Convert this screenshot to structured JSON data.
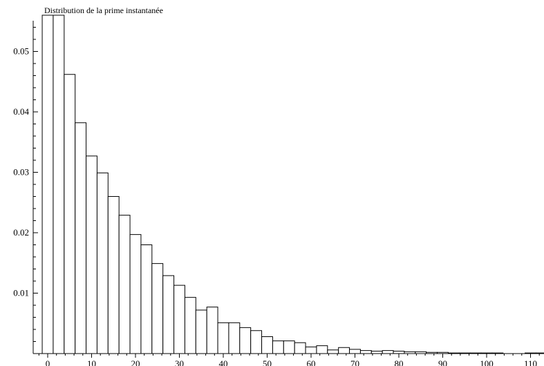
{
  "chart_data": {
    "type": "bar",
    "title": "Distribution de la prime instantanée",
    "xlabel": "",
    "ylabel": "",
    "bin_width": 2.5,
    "x_start": -1.25,
    "xlim": [
      -3,
      112
    ],
    "ylim": [
      0,
      0.056
    ],
    "x_ticks": [
      0,
      10,
      20,
      30,
      40,
      50,
      60,
      70,
      80,
      90,
      100,
      110
    ],
    "y_ticks": [
      0.01,
      0.02,
      0.03,
      0.04,
      0.05
    ],
    "x_tick_labels": [
      "0",
      "10",
      "20",
      "30",
      "40",
      "50",
      "60",
      "70",
      "80",
      "90",
      "100",
      "110"
    ],
    "y_tick_labels": [
      "0.01",
      "0.02",
      "0.03",
      "0.04",
      "0.05"
    ],
    "values": [
      0.056,
      0.056,
      0.0462,
      0.0382,
      0.0327,
      0.0299,
      0.026,
      0.0229,
      0.0197,
      0.018,
      0.0149,
      0.0129,
      0.0113,
      0.0093,
      0.0072,
      0.0077,
      0.0051,
      0.0051,
      0.0043,
      0.0038,
      0.0028,
      0.0021,
      0.0021,
      0.0018,
      0.0011,
      0.0013,
      0.0006,
      0.001,
      0.0007,
      0.0005,
      0.0004,
      0.0005,
      0.0004,
      0.0003,
      0.0003,
      0.0002,
      0.0002,
      0.0001,
      0.0001,
      0.0001,
      0.0001,
      0.0001,
      0.0,
      0.0,
      0.0001,
      0.0001,
      0.0,
      0.0,
      0.0,
      0.0,
      0.0
    ],
    "grid": false,
    "legend": "none",
    "bar_fill": "#ffffff",
    "bar_stroke": "#000000"
  }
}
